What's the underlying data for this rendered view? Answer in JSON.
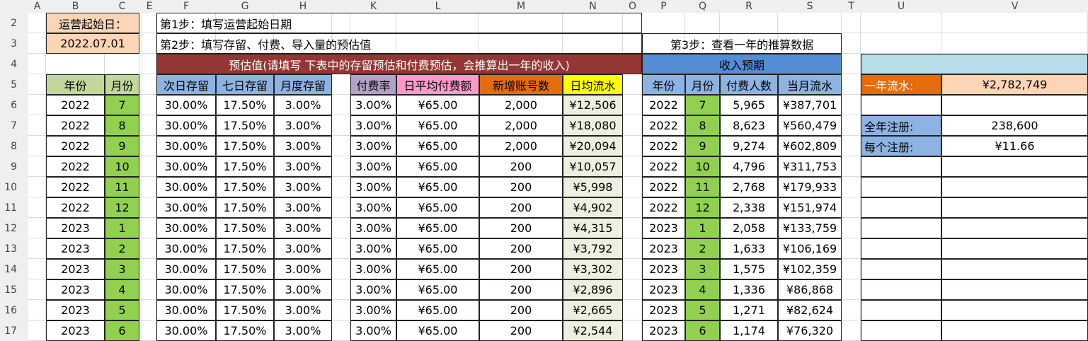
{
  "columns": [
    "A",
    "B",
    "C",
    "",
    "E",
    "F",
    "G",
    "H",
    "",
    "K",
    "L",
    "M",
    "N",
    "O",
    "P",
    "Q",
    "R",
    "S",
    "T",
    "U",
    "V",
    "W"
  ],
  "rows": [
    2,
    3,
    4,
    5,
    6,
    7,
    8,
    9,
    10,
    11,
    12,
    13,
    14,
    15,
    16,
    17
  ],
  "start": {
    "label": "运营起始日：",
    "value": "2022.07.01"
  },
  "steps": {
    "step1": "第1步：填写运营起始日期",
    "step2": "第2步：填写存留、付费、导入量的预估值",
    "step3": "第3步：查看一年的推算数据"
  },
  "section_titles": {
    "estimate": "预估值(请填写 下表中的存留预估和付费预估，会推算出一年的收入)",
    "revenue": "收入预期"
  },
  "headers": {
    "year": "年份",
    "month": "月份",
    "retention": [
      "次日存留",
      "七日存留",
      "月度存留"
    ],
    "payment": [
      "付费率",
      "日平均付费额",
      "新增账号数",
      "日均流水"
    ],
    "forecast": [
      "年份",
      "月份",
      "付费人数",
      "当月流水"
    ]
  },
  "summary": {
    "annual_revenue_label": "一年流水:",
    "annual_revenue_value": "¥2,782,749",
    "annual_reg_label": "全年注册:",
    "annual_reg_value": "238,600",
    "per_reg_label": "每个注册:",
    "per_reg_value": "¥11.66"
  },
  "table": [
    {
      "year": "2022",
      "month": "7",
      "d1": "30.00%",
      "d7": "17.50%",
      "m": "3.00%",
      "rate": "3.00%",
      "arpu": "¥65.00",
      "new": "2,000",
      "daily": "¥12,506",
      "fy": "2022",
      "fm": "7",
      "payers": "5,965",
      "monthly": "¥387,701"
    },
    {
      "year": "2022",
      "month": "8",
      "d1": "30.00%",
      "d7": "17.50%",
      "m": "3.00%",
      "rate": "3.00%",
      "arpu": "¥65.00",
      "new": "2,000",
      "daily": "¥18,080",
      "fy": "2022",
      "fm": "8",
      "payers": "8,623",
      "monthly": "¥560,479"
    },
    {
      "year": "2022",
      "month": "9",
      "d1": "30.00%",
      "d7": "17.50%",
      "m": "3.00%",
      "rate": "3.00%",
      "arpu": "¥65.00",
      "new": "2,000",
      "daily": "¥20,094",
      "fy": "2022",
      "fm": "9",
      "payers": "9,274",
      "monthly": "¥602,809"
    },
    {
      "year": "2022",
      "month": "10",
      "d1": "30.00%",
      "d7": "17.50%",
      "m": "3.00%",
      "rate": "3.00%",
      "arpu": "¥65.00",
      "new": "200",
      "daily": "¥10,057",
      "fy": "2022",
      "fm": "10",
      "payers": "4,796",
      "monthly": "¥311,753"
    },
    {
      "year": "2022",
      "month": "11",
      "d1": "30.00%",
      "d7": "17.50%",
      "m": "3.00%",
      "rate": "3.00%",
      "arpu": "¥65.00",
      "new": "200",
      "daily": "¥5,998",
      "fy": "2022",
      "fm": "11",
      "payers": "2,768",
      "monthly": "¥179,933"
    },
    {
      "year": "2022",
      "month": "12",
      "d1": "30.00%",
      "d7": "17.50%",
      "m": "3.00%",
      "rate": "3.00%",
      "arpu": "¥65.00",
      "new": "200",
      "daily": "¥4,902",
      "fy": "2022",
      "fm": "12",
      "payers": "2,338",
      "monthly": "¥151,974"
    },
    {
      "year": "2023",
      "month": "1",
      "d1": "30.00%",
      "d7": "17.50%",
      "m": "3.00%",
      "rate": "3.00%",
      "arpu": "¥65.00",
      "new": "200",
      "daily": "¥4,315",
      "fy": "2023",
      "fm": "1",
      "payers": "2,058",
      "monthly": "¥133,759"
    },
    {
      "year": "2023",
      "month": "2",
      "d1": "30.00%",
      "d7": "17.50%",
      "m": "3.00%",
      "rate": "3.00%",
      "arpu": "¥65.00",
      "new": "200",
      "daily": "¥3,792",
      "fy": "2023",
      "fm": "2",
      "payers": "1,633",
      "monthly": "¥106,169"
    },
    {
      "year": "2023",
      "month": "3",
      "d1": "30.00%",
      "d7": "17.50%",
      "m": "3.00%",
      "rate": "3.00%",
      "arpu": "¥65.00",
      "new": "200",
      "daily": "¥3,302",
      "fy": "2023",
      "fm": "3",
      "payers": "1,575",
      "monthly": "¥102,359"
    },
    {
      "year": "2023",
      "month": "4",
      "d1": "30.00%",
      "d7": "17.50%",
      "m": "3.00%",
      "rate": "3.00%",
      "arpu": "¥65.00",
      "new": "200",
      "daily": "¥2,896",
      "fy": "2023",
      "fm": "4",
      "payers": "1,336",
      "monthly": "¥86,868"
    },
    {
      "year": "2023",
      "month": "5",
      "d1": "30.00%",
      "d7": "17.50%",
      "m": "3.00%",
      "rate": "3.00%",
      "arpu": "¥65.00",
      "new": "200",
      "daily": "¥2,665",
      "fy": "2023",
      "fm": "5",
      "payers": "1,271",
      "monthly": "¥82,624"
    },
    {
      "year": "2023",
      "month": "6",
      "d1": "30.00%",
      "d7": "17.50%",
      "m": "3.00%",
      "rate": "3.00%",
      "arpu": "¥65.00",
      "new": "200",
      "daily": "¥2,544",
      "fy": "2023",
      "fm": "6",
      "payers": "1,174",
      "monthly": "¥76,320"
    }
  ],
  "colors": {
    "start_fill": "#fbd5b5",
    "estimate_banner": "#943634",
    "revenue_banner": "#548dd4",
    "summary_banner": "#b7dde8",
    "year_header": "#c3d69b",
    "month_fill": "#92d050",
    "retention_header": "#8db3e2",
    "rate_header": "#b3a2c7",
    "arpu_header": "#ff99cc",
    "new_header": "#e46c0a",
    "daily_header": "#ffff00",
    "daily_fill": "#ebf1de",
    "annual_label": "#e46c0a",
    "annual_value": "#fbd5b5",
    "reg_label": "#8db3e2"
  }
}
